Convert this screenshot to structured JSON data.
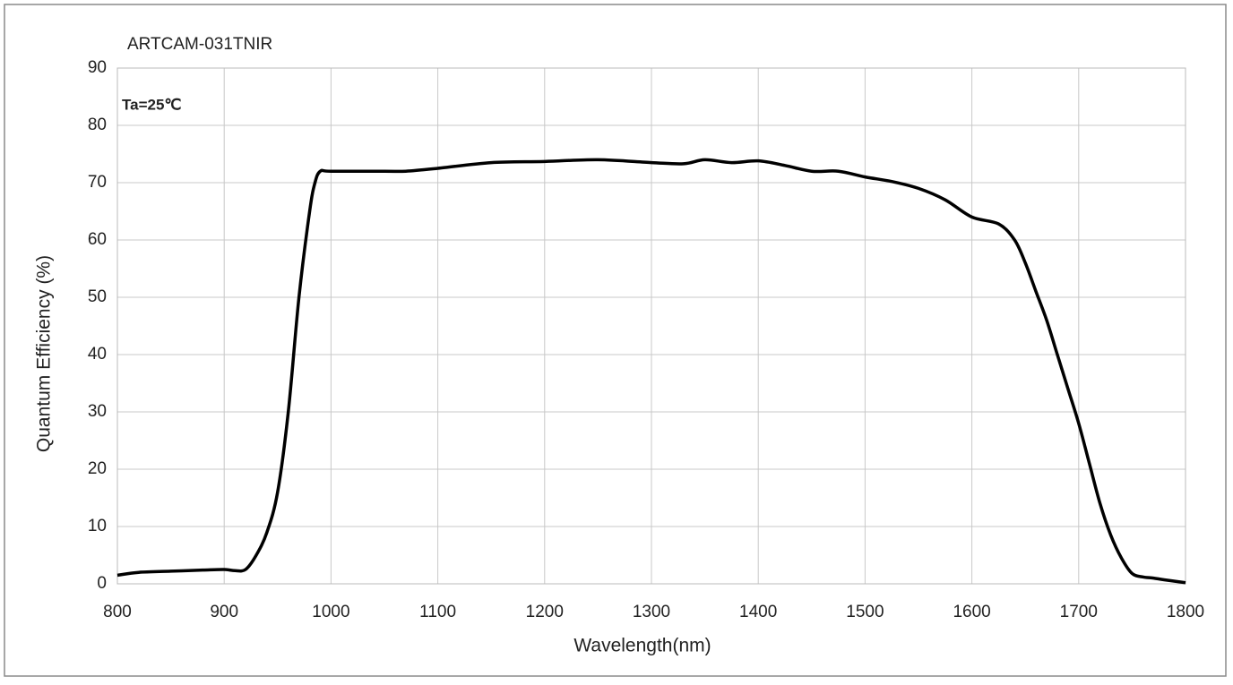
{
  "chart_data": {
    "type": "line",
    "title": "ARTCAM-031TNIR",
    "annotation": "Ta=25℃",
    "x_label": "Wavelength(nm)",
    "y_label": "Quantum Efficiency (%)",
    "xlim": [
      800,
      1800
    ],
    "ylim": [
      0,
      90
    ],
    "xticks": [
      800,
      900,
      1000,
      1100,
      1200,
      1300,
      1400,
      1500,
      1600,
      1700,
      1800
    ],
    "yticks": [
      0,
      10,
      20,
      30,
      40,
      50,
      60,
      70,
      80,
      90
    ],
    "grid": true,
    "series": [
      {
        "color": "#000000",
        "x": [
          800,
          820,
          850,
          880,
          900,
          910,
          920,
          930,
          940,
          950,
          960,
          970,
          980,
          985,
          990,
          1000,
          1050,
          1070,
          1100,
          1150,
          1200,
          1250,
          1300,
          1330,
          1350,
          1375,
          1400,
          1425,
          1450,
          1475,
          1500,
          1525,
          1550,
          1575,
          1600,
          1625,
          1640,
          1650,
          1660,
          1670,
          1680,
          1690,
          1700,
          1710,
          1720,
          1730,
          1740,
          1750,
          1760,
          1770,
          1780,
          1800
        ],
        "values": [
          1.5,
          2,
          2.2,
          2.4,
          2.5,
          2.3,
          2.5,
          5,
          9,
          16,
          30,
          50,
          65,
          70,
          72,
          72,
          72,
          72,
          72.5,
          73.5,
          73.7,
          74,
          73.5,
          73.3,
          74,
          73.5,
          73.8,
          73,
          72,
          72,
          71,
          70.2,
          69,
          67,
          64,
          62.8,
          60,
          56,
          51,
          46,
          40,
          34,
          28,
          21,
          14,
          8.5,
          4.5,
          1.8,
          1.2,
          1,
          0.7,
          0.2
        ]
      }
    ]
  }
}
